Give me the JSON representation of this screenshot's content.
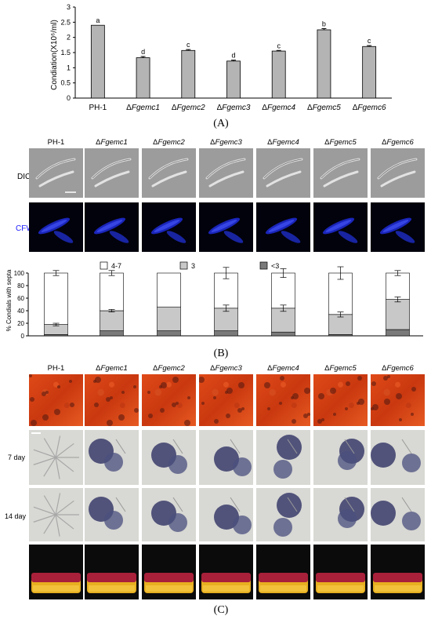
{
  "colors": {
    "bar_fill": "#b4b4b4",
    "bar_stroke": "#000000",
    "seg_white": "#ffffff",
    "seg_gray": "#c8c8c8",
    "seg_dark": "#7a7a7a",
    "cfw_label": "#1a1aff"
  },
  "panelA": {
    "letter": "(A)",
    "chart_data": {
      "type": "bar",
      "ylabel": "Condiation(X10⁶/ml)",
      "ylim": [
        0,
        3
      ],
      "yticks": [
        "0",
        "0.5",
        "1",
        "1.5",
        "2",
        "2.5",
        "3"
      ],
      "categories": [
        "PH-1",
        "ΔFgemc1",
        "ΔFgemc2",
        "ΔFgemc3",
        "ΔFgemc4",
        "ΔFgemc5",
        "ΔFgemc6"
      ],
      "values": [
        2.4,
        1.33,
        1.57,
        1.22,
        1.55,
        2.25,
        1.7
      ],
      "errors": [
        0.0,
        0.04,
        0.03,
        0.03,
        0.02,
        0.04,
        0.03
      ],
      "letters": [
        "a",
        "d",
        "c",
        "d",
        "c",
        "b",
        "c"
      ],
      "grid": false
    }
  },
  "panelB": {
    "letter": "(B)",
    "strains": [
      "PH-1",
      "ΔFgemc1",
      "ΔFgemc2",
      "ΔFgemc3",
      "ΔFgemc4",
      "ΔFgemc5",
      "ΔFgemc6"
    ],
    "row_labels": [
      "DIC",
      "CFW"
    ],
    "chart_data": {
      "type": "bar",
      "stacked": true,
      "ylabel": "% Condials  with septa",
      "ylim": [
        0,
        100
      ],
      "yticks": [
        "0",
        "20",
        "40",
        "60",
        "80",
        "100"
      ],
      "categories": [
        "PH-1",
        "ΔFgemc1",
        "ΔFgemc2",
        "ΔFgemc3",
        "ΔFgemc4",
        "ΔFgemc5",
        "ΔFgemc6"
      ],
      "legend": [
        "4-7",
        "3",
        "<3"
      ],
      "series": [
        {
          "name": "<3",
          "values": [
            2,
            8,
            8,
            8,
            6,
            2,
            10
          ]
        },
        {
          "name": "3",
          "values": [
            16,
            32,
            38,
            36,
            38,
            32,
            48
          ]
        },
        {
          "name": "4-7",
          "values": [
            82,
            60,
            54,
            56,
            56,
            66,
            42
          ]
        }
      ],
      "totals_err": [
        4,
        4,
        0,
        9,
        7,
        10,
        4
      ],
      "mid_err": [
        2,
        2,
        0,
        5,
        5,
        4,
        4
      ],
      "legend_position": "top",
      "grid": false
    }
  },
  "panelC": {
    "letter": "(C)",
    "strains": [
      "PH-1",
      "ΔFgemc1",
      "ΔFgemc2",
      "ΔFgemc3",
      "ΔFgemc4",
      "ΔFgemc5",
      "ΔFgemc6"
    ],
    "row_labels": [
      "7 day",
      "14 day"
    ]
  }
}
